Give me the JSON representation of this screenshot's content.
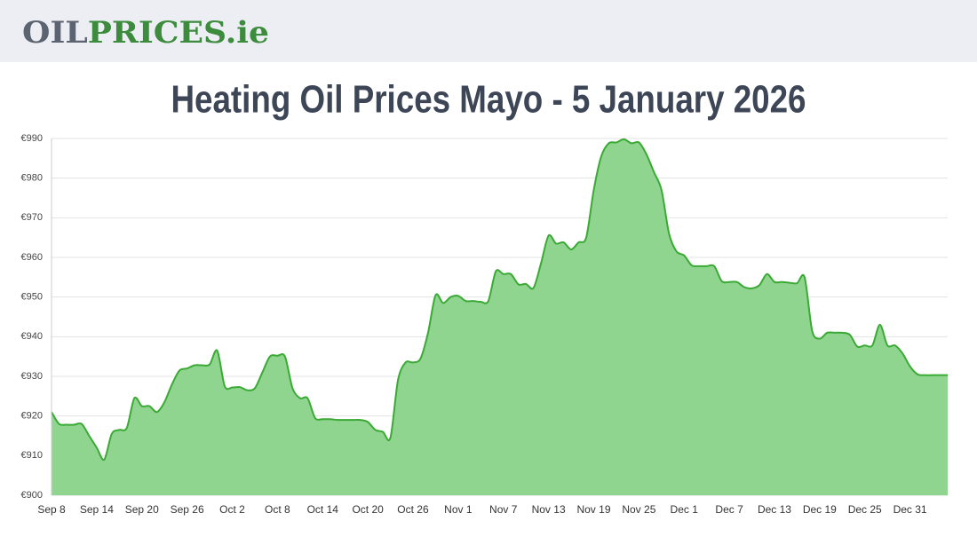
{
  "header": {
    "logo": [
      "OIL",
      "PRICES.ie"
    ]
  },
  "chart_data": {
    "type": "area",
    "title": "Heating Oil Prices Mayo - 5 January 2026",
    "categories": [
      "Sep 8",
      null,
      null,
      null,
      null,
      null,
      "Sep 14",
      null,
      null,
      null,
      null,
      null,
      "Sep 20",
      null,
      null,
      null,
      null,
      null,
      "Sep 26",
      null,
      null,
      null,
      null,
      null,
      "Oct 2",
      null,
      null,
      null,
      null,
      null,
      "Oct 8",
      null,
      null,
      null,
      null,
      null,
      "Oct 14",
      null,
      null,
      null,
      null,
      null,
      "Oct 20",
      null,
      null,
      null,
      null,
      null,
      "Oct 26",
      null,
      null,
      null,
      null,
      null,
      "Nov 1",
      null,
      null,
      null,
      null,
      null,
      "Nov 7",
      null,
      null,
      null,
      null,
      null,
      "Nov 13",
      null,
      null,
      null,
      null,
      null,
      "Nov 19",
      null,
      null,
      null,
      null,
      null,
      "Nov 25",
      null,
      null,
      null,
      null,
      null,
      "Dec 1",
      null,
      null,
      null,
      null,
      null,
      "Dec 7",
      null,
      null,
      null,
      null,
      null,
      "Dec 13",
      null,
      null,
      null,
      null,
      null,
      "Dec 19",
      null,
      null,
      null,
      null,
      null,
      "Dec 25",
      null,
      null,
      null,
      null,
      null,
      "Dec 31",
      null,
      null,
      null,
      null,
      null
    ],
    "values": [
      921,
      918,
      917.8,
      917.8,
      918,
      915,
      912,
      909,
      915.5,
      916.5,
      917,
      924.5,
      922.5,
      922.5,
      921,
      923.5,
      928,
      931.5,
      932,
      932.8,
      932.8,
      933,
      936.5,
      927.5,
      927.2,
      927.3,
      926.5,
      927,
      931,
      935,
      935.2,
      935,
      927,
      924.5,
      924.5,
      919.5,
      919.2,
      919.2,
      919,
      919,
      919,
      919,
      918.5,
      916.5,
      916,
      914.5,
      929,
      933.5,
      933.5,
      934.5,
      941,
      950.5,
      948.5,
      950,
      950.3,
      949,
      949,
      948.8,
      949,
      956.5,
      955.8,
      955.8,
      953.2,
      953.3,
      952.3,
      958.5,
      965.5,
      963.5,
      963.8,
      962,
      963.8,
      965,
      977,
      985.5,
      988.8,
      989,
      989.8,
      988.8,
      989,
      986,
      981.5,
      977,
      966,
      961.5,
      960.5,
      958,
      957.8,
      957.8,
      957.8,
      954,
      953.8,
      953.8,
      952.5,
      952.2,
      953,
      955.8,
      953.8,
      953.8,
      953.6,
      953.5,
      955,
      941.5,
      939.5,
      941,
      941,
      941,
      940.5,
      937.5,
      937.8,
      937.8,
      943,
      937.8,
      937.8,
      935.8,
      932.5,
      930.5,
      930.3,
      930.3,
      930.3,
      930.3
    ],
    "line_color": "#3aaa35",
    "fill_color": "#8fd48f",
    "ylim": [
      900,
      990
    ],
    "yticks": [
      {
        "value": 900,
        "label": "€900"
      },
      {
        "value": 910,
        "label": "€910"
      },
      {
        "value": 920,
        "label": "€920"
      },
      {
        "value": 930,
        "label": "€930"
      },
      {
        "value": 940,
        "label": "€940"
      },
      {
        "value": 950,
        "label": "€950"
      },
      {
        "value": 960,
        "label": "€960"
      },
      {
        "value": 970,
        "label": "€970"
      },
      {
        "value": 980,
        "label": "€980"
      },
      {
        "value": 990,
        "label": "€990"
      }
    ],
    "grid": true
  }
}
